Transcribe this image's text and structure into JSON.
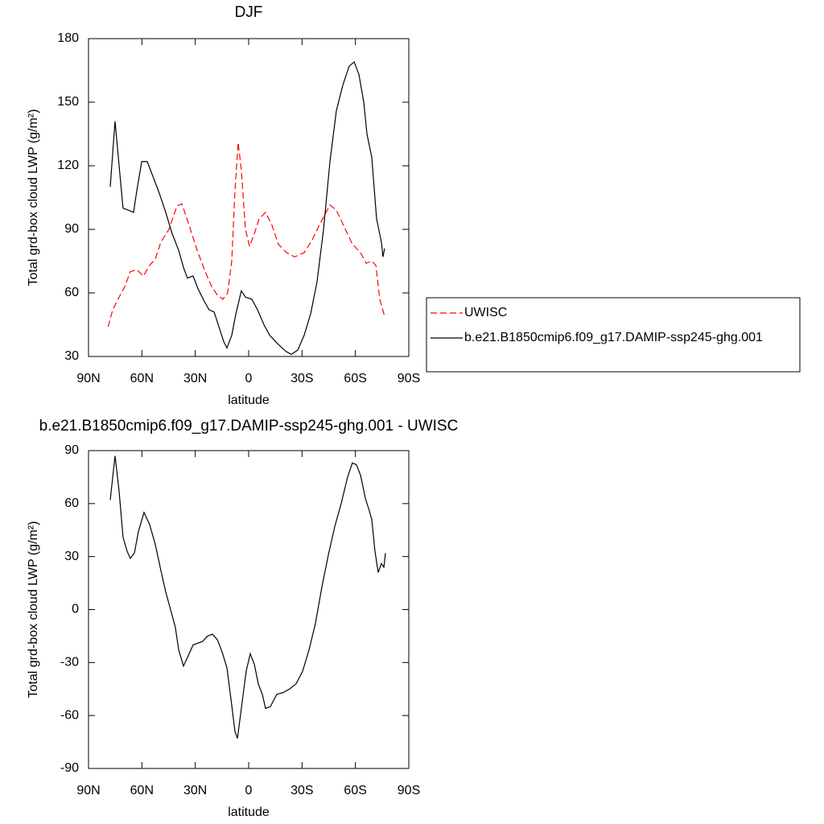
{
  "chart_data": [
    {
      "type": "line",
      "title": "DJF",
      "xlabel": "latitude",
      "ylabel": "Total grd-box cloud LWP (g/m²)",
      "xlim": [
        90,
        -90
      ],
      "xticks": [
        {
          "value": 90,
          "label": "90N"
        },
        {
          "value": 60,
          "label": "60N"
        },
        {
          "value": 30,
          "label": "30N"
        },
        0,
        {
          "value": -30,
          "label": "30S"
        },
        {
          "value": -60,
          "label": "60S"
        },
        {
          "value": -90,
          "label": "90S"
        }
      ],
      "ylim": [
        30,
        180
      ],
      "yticks": [
        30,
        60,
        90,
        120,
        150,
        180
      ],
      "legend": "right",
      "series": [
        {
          "name": "UWISC",
          "color": "#ff0000",
          "style": "dashed",
          "x": [
            79,
            76.4,
            72.8,
            69.6,
            66.5,
            62.9,
            59.2,
            55.6,
            52.5,
            49.3,
            44.8,
            40.3,
            37.5,
            33.5,
            28.9,
            24.4,
            20.8,
            17.6,
            14.5,
            11.8,
            9.5,
            7.7,
            5.9,
            4.1,
            1.8,
            -0.5,
            -3.2,
            -5.9,
            -9.5,
            -13.1,
            -16.7,
            -21.3,
            -25.8,
            -31.2,
            -35.7,
            -40.3,
            -45.7,
            -49.3,
            -53.8,
            -58.3,
            -62.9,
            -66,
            -69.2,
            -71.5,
            -73.7,
            -76.4
          ],
          "values": [
            44,
            52,
            58,
            63,
            70,
            71,
            68,
            73,
            76,
            84,
            90,
            101,
            102,
            92,
            80,
            70,
            63,
            59,
            57,
            60,
            75,
            108,
            131,
            118,
            90,
            82,
            88,
            95,
            98,
            92,
            83,
            79,
            77,
            79,
            85,
            93,
            101.5,
            99,
            91,
            83,
            79,
            74,
            75,
            73,
            57,
            49
          ]
        },
        {
          "name": "b.e21.B1850cmip6.f09_g17.DAMIP-ssp245-ghg.001",
          "color": "#000000",
          "style": "solid",
          "x": [
            77.8,
            75.1,
            72.8,
            70.6,
            67.4,
            64.7,
            62.9,
            60.1,
            57,
            53.8,
            50.2,
            46.6,
            43,
            39.3,
            36.6,
            34.4,
            31.2,
            28.5,
            24.9,
            22.2,
            19.4,
            16.7,
            14,
            12.2,
            9.5,
            7.2,
            4.1,
            1.8,
            -1.8,
            -5,
            -8.6,
            -11.8,
            -16.3,
            -20.8,
            -23.9,
            -27.6,
            -31.2,
            -34.8,
            -38.4,
            -42.1,
            -45.7,
            -49.3,
            -52.9,
            -56.5,
            -59.3,
            -62,
            -64.7,
            -66.5,
            -69.2,
            -71.9,
            -74.6,
            -75.5,
            -76.4
          ],
          "values": [
            110,
            141,
            120,
            100,
            99,
            98,
            108,
            122,
            122,
            115,
            107,
            98,
            88,
            80,
            72,
            67,
            68,
            62,
            56,
            52,
            51,
            44,
            37,
            34,
            40,
            50,
            61,
            58,
            57,
            52,
            45,
            40,
            36,
            32.5,
            31,
            33,
            40,
            50,
            65,
            90,
            122,
            146,
            158,
            167,
            169,
            163,
            150,
            135,
            124,
            95,
            84,
            77,
            81
          ]
        }
      ]
    },
    {
      "type": "line",
      "title": "b.e21.B1850cmip6.f09_g17.DAMIP-ssp245-ghg.001 - UWISC",
      "xlabel": "latitude",
      "ylabel": "Total grd-box cloud LWP (g/m²)",
      "xlim": [
        90,
        -90
      ],
      "xticks": [
        {
          "value": 90,
          "label": "90N"
        },
        {
          "value": 60,
          "label": "60N"
        },
        {
          "value": 30,
          "label": "30N"
        },
        0,
        {
          "value": -30,
          "label": "30S"
        },
        {
          "value": -60,
          "label": "60S"
        },
        {
          "value": -90,
          "label": "90S"
        }
      ],
      "ylim": [
        -90,
        90
      ],
      "yticks": [
        -90,
        -60,
        -30,
        0,
        30,
        60,
        90
      ],
      "series": [
        {
          "color": "#000000",
          "style": "solid",
          "x": [
            77.8,
            75.1,
            72.8,
            70.6,
            68.3,
            66.5,
            64.2,
            62,
            58.8,
            55.6,
            52.5,
            49.3,
            46.6,
            43.9,
            41.2,
            39.3,
            36.6,
            33.9,
            31.2,
            28.5,
            25.8,
            23.1,
            20.3,
            17.6,
            14.9,
            12.2,
            9.9,
            7.7,
            6.3,
            4.1,
            1.4,
            -0.9,
            -3.2,
            -5.4,
            -7.7,
            -9.5,
            -12.2,
            -15.8,
            -19.4,
            -23,
            -26.7,
            -30.3,
            -33.9,
            -37.5,
            -41.2,
            -44.8,
            -48.4,
            -52,
            -55.6,
            -58.3,
            -60.6,
            -62.9,
            -65.6,
            -67.8,
            -69.2,
            -71,
            -72.8,
            -74.6,
            -76,
            -76.9
          ],
          "values": [
            62,
            87,
            67,
            41,
            33,
            29,
            32,
            44,
            55,
            48,
            37,
            22,
            10,
            0,
            -10,
            -23,
            -32,
            -26,
            -20,
            -19,
            -18,
            -15,
            -14,
            -17,
            -24,
            -33,
            -51,
            -69,
            -73,
            -56,
            -35,
            -25,
            -31,
            -42,
            -48,
            -56,
            -55,
            -48,
            -47,
            -45,
            -42,
            -35,
            -23,
            -8,
            13,
            31,
            47,
            60,
            75,
            83,
            82,
            76,
            63,
            56,
            51,
            33,
            21,
            26,
            24,
            32
          ]
        }
      ]
    }
  ]
}
